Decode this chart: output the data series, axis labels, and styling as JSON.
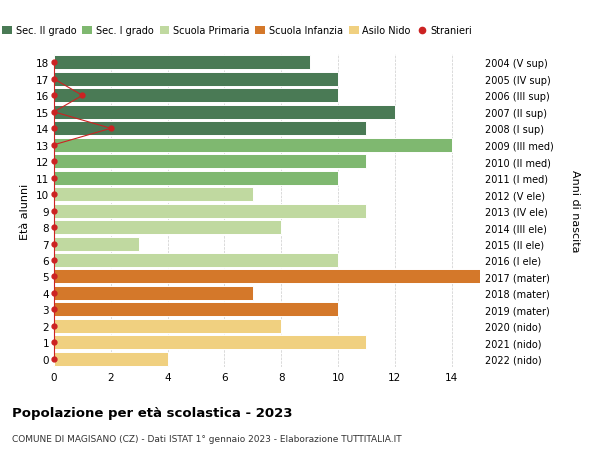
{
  "ages": [
    18,
    17,
    16,
    15,
    14,
    13,
    12,
    11,
    10,
    9,
    8,
    7,
    6,
    5,
    4,
    3,
    2,
    1,
    0
  ],
  "years": [
    "2004 (V sup)",
    "2005 (IV sup)",
    "2006 (III sup)",
    "2007 (II sup)",
    "2008 (I sup)",
    "2009 (III med)",
    "2010 (II med)",
    "2011 (I med)",
    "2012 (V ele)",
    "2013 (IV ele)",
    "2014 (III ele)",
    "2015 (II ele)",
    "2016 (I ele)",
    "2017 (mater)",
    "2018 (mater)",
    "2019 (mater)",
    "2020 (nido)",
    "2021 (nido)",
    "2022 (nido)"
  ],
  "values": [
    9,
    10,
    10,
    12,
    11,
    14,
    11,
    10,
    7,
    11,
    8,
    3,
    10,
    15,
    7,
    10,
    8,
    11,
    4
  ],
  "colors": [
    "#4a7a55",
    "#4a7a55",
    "#4a7a55",
    "#4a7a55",
    "#4a7a55",
    "#7fb870",
    "#7fb870",
    "#7fb870",
    "#c0d9a0",
    "#c0d9a0",
    "#c0d9a0",
    "#c0d9a0",
    "#c0d9a0",
    "#d4782a",
    "#d4782a",
    "#d4782a",
    "#f0d080",
    "#f0d080",
    "#f0d080"
  ],
  "stranieri_ages": [
    18,
    17,
    16,
    15,
    14,
    13,
    12,
    11,
    10,
    9,
    8,
    7,
    6,
    5,
    4,
    3,
    2,
    1,
    0
  ],
  "stranieri_values": [
    0,
    0,
    1,
    0,
    1,
    0,
    0,
    0,
    0,
    0,
    0,
    0,
    0,
    0,
    0,
    0,
    0,
    0,
    0
  ],
  "title": "Popolazione per età scolastica - 2023",
  "subtitle": "COMUNE DI MAGISANO (CZ) - Dati ISTAT 1° gennaio 2023 - Elaborazione TUTTITALIA.IT",
  "ylabel": "Età alunni",
  "right_label": "Anni di nascita",
  "xlim": [
    0,
    15
  ],
  "xticks": [
    0,
    2,
    4,
    6,
    8,
    10,
    12,
    14
  ],
  "legend_labels": [
    "Sec. II grado",
    "Sec. I grado",
    "Scuola Primaria",
    "Scuola Infanzia",
    "Asilo Nido",
    "Stranieri"
  ],
  "legend_colors": [
    "#4a7a55",
    "#7fb870",
    "#c0d9a0",
    "#d4782a",
    "#f0d080",
    "#cc2222"
  ],
  "background_color": "#ffffff",
  "bar_height": 0.85
}
